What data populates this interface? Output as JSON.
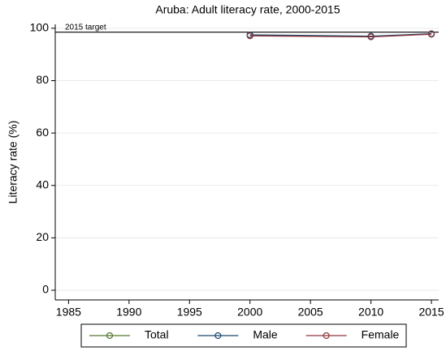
{
  "chart_data": {
    "type": "line",
    "title": "Aruba: Adult literacy rate, 2000-2015",
    "y_label": "Literacy rate (%)",
    "x": [
      2000,
      2010,
      2015
    ],
    "series": [
      {
        "name": "Total",
        "color": "#55752f",
        "values": [
          97.3,
          96.8,
          97.8
        ]
      },
      {
        "name": "Male",
        "color": "#1a476f",
        "values": [
          97.5,
          97.0,
          97.9
        ]
      },
      {
        "name": "Female",
        "color": "#90353b",
        "values": [
          97.1,
          96.7,
          97.7
        ]
      }
    ],
    "target": {
      "value": 98.5,
      "label": "2015 target"
    },
    "xlim": [
      1983.9,
      2015.6
    ],
    "xticks": [
      1985,
      1990,
      1995,
      2000,
      2005,
      2010,
      2015
    ],
    "ylim": [
      -3.7,
      101.5
    ],
    "yticks": [
      0,
      20,
      40,
      60,
      80,
      100
    ],
    "grid": true,
    "legend": "bottom"
  }
}
